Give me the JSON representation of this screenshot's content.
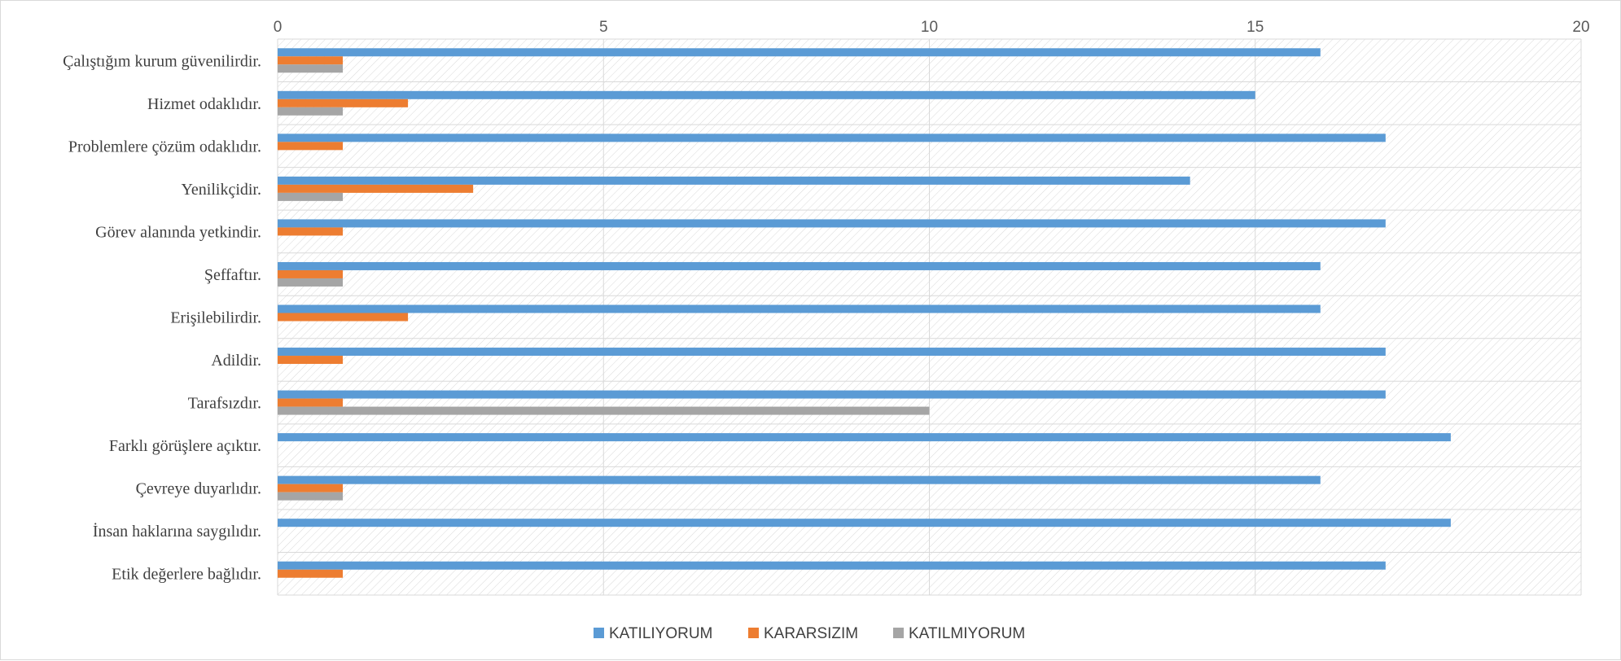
{
  "chart_data": {
    "type": "bar",
    "orientation": "horizontal",
    "title": "",
    "xlabel": "",
    "ylabel": "",
    "xlim": [
      0,
      20
    ],
    "x_ticks": [
      "0",
      "5",
      "10",
      "15",
      "20"
    ],
    "x_axis_position": "top",
    "grid": true,
    "legend_position": "bottom",
    "categories": [
      "Çalıştığım kurum güvenilirdir.",
      "Hizmet odaklıdır.",
      "Problemlere çözüm odaklıdır.",
      "Yenilikçidir.",
      "Görev alanında yetkindir.",
      "Şeffaftır.",
      "Erişilebilirdir.",
      "Adildir.",
      "Tarafsızdır.",
      "Farklı görüşlere açıktır.",
      "Çevreye duyarlıdır.",
      "İnsan haklarına saygılıdır.",
      "Etik değerlere bağlıdır."
    ],
    "series": [
      {
        "name": "KATILIYORUM",
        "color": "#5b9bd5",
        "values": [
          16,
          15,
          17,
          14,
          17,
          16,
          16,
          17,
          17,
          18,
          16,
          18,
          17
        ]
      },
      {
        "name": "KARARSIZIM",
        "color": "#ed7d31",
        "values": [
          1,
          2,
          1,
          3,
          1,
          1,
          2,
          1,
          1,
          0,
          1,
          0,
          1
        ]
      },
      {
        "name": "KATILMIYORUM",
        "color": "#a5a5a5",
        "values": [
          1,
          1,
          0,
          1,
          0,
          1,
          0,
          0,
          10,
          0,
          1,
          0,
          0
        ]
      }
    ]
  }
}
